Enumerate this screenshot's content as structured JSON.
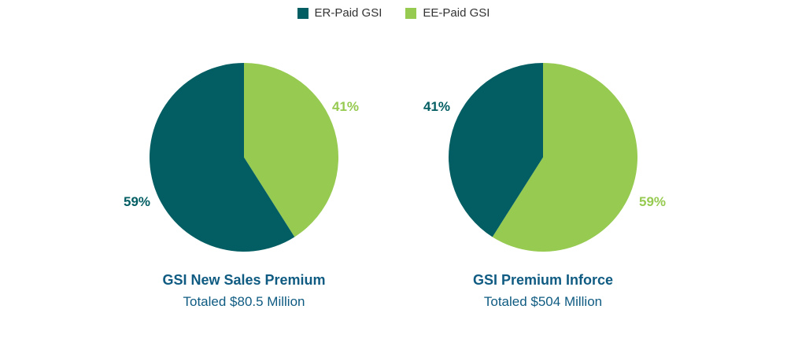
{
  "legend": [
    {
      "label": "ER-Paid GSI",
      "color": "#035e63"
    },
    {
      "label": "EE-Paid GSI",
      "color": "#96ca50"
    }
  ],
  "chart_data": [
    {
      "type": "pie",
      "title": "GSI New Sales Premium",
      "subtitle": "Totaled $80.5 Million",
      "series": [
        {
          "name": "ER-Paid GSI",
          "value": 59,
          "label": "59%"
        },
        {
          "name": "EE-Paid GSI",
          "value": 41,
          "label": "41%"
        }
      ]
    },
    {
      "type": "pie",
      "title": "GSI Premium Inforce",
      "subtitle": "Totaled $504 Million",
      "series": [
        {
          "name": "ER-Paid GSI",
          "value": 41,
          "label": "41%"
        },
        {
          "name": "EE-Paid GSI",
          "value": 59,
          "label": "59%"
        }
      ]
    }
  ]
}
